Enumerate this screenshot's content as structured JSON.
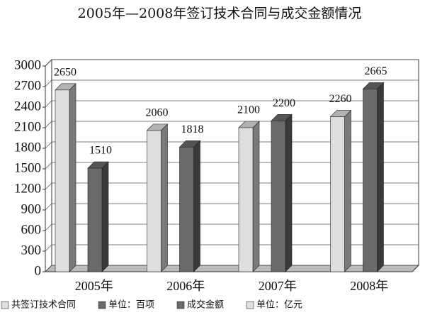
{
  "chart_data": {
    "type": "bar3d",
    "title": "2005年—2008年签订技术合同与成交金额情况",
    "categories": [
      "2005年",
      "2006年",
      "2007年",
      "2008年"
    ],
    "series": [
      {
        "name": "共签订技术合同",
        "unit": "单位：百项",
        "color": "#dedede",
        "values": [
          2650,
          2060,
          2100,
          2260
        ]
      },
      {
        "name": "成交金额",
        "unit": "单位：亿元",
        "color": "#6a6a6a",
        "values": [
          1510,
          1818,
          2200,
          2665
        ]
      }
    ],
    "ylim": [
      0,
      3000
    ],
    "yticks": [
      0,
      300,
      600,
      900,
      1200,
      1500,
      1800,
      2100,
      2400,
      2700,
      3000
    ],
    "grid": true
  }
}
